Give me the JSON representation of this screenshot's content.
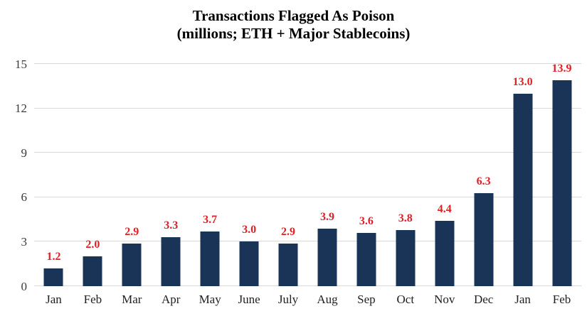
{
  "chart_data": {
    "type": "bar",
    "title": "Transactions Flagged As Poison",
    "subtitle": "(millions; ETH + Major Stablecoins)",
    "categories": [
      "Jan",
      "Feb",
      "Mar",
      "Apr",
      "May",
      "June",
      "July",
      "Aug",
      "Sep",
      "Oct",
      "Nov",
      "Dec",
      "Jan",
      "Feb"
    ],
    "values": [
      1.2,
      2.0,
      2.9,
      3.3,
      3.7,
      3.0,
      2.9,
      3.9,
      3.6,
      3.8,
      4.4,
      6.3,
      13.0,
      13.9
    ],
    "value_labels": [
      "1.2",
      "2.0",
      "2.9",
      "3.3",
      "3.7",
      "3.0",
      "2.9",
      "3.9",
      "3.6",
      "3.8",
      "4.4",
      "6.3",
      "13.0",
      "13.9"
    ],
    "xlabel": "",
    "ylabel": "",
    "yticks": [
      0,
      3,
      6,
      9,
      12,
      15
    ],
    "ylim": [
      0,
      15
    ],
    "grid": true,
    "legend": false,
    "colors": {
      "bar": "#1a3458",
      "value_label": "#e02026",
      "gridline": "#d9d9d9",
      "axis_text": "#3a3a3a",
      "title_text": "#000000"
    }
  }
}
